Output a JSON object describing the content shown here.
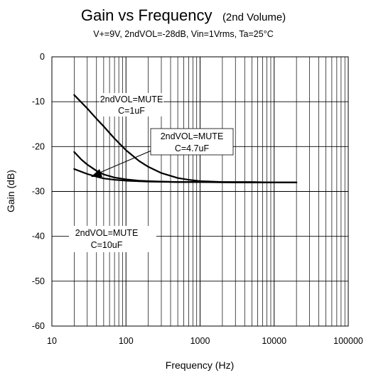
{
  "chart_data": {
    "type": "line",
    "title": "Gain vs Frequency",
    "title_suffix": "(2nd Volume)",
    "subtitle": "V+=9V, 2ndVOL=-28dB, Vin=1Vrms, Ta=25°C",
    "xlabel": "Frequency (Hz)",
    "ylabel": "Gain (dB)",
    "x_scale": "log",
    "xlim": [
      10,
      100000
    ],
    "ylim": [
      -60,
      0
    ],
    "x_ticks": [
      10,
      100,
      1000,
      10000,
      100000
    ],
    "x_tick_labels": [
      "10",
      "100",
      "1000",
      "10000",
      "100000"
    ],
    "y_ticks": [
      0,
      -10,
      -20,
      -30,
      -40,
      -50,
      -60
    ],
    "y_tick_labels": [
      "0",
      "-10",
      "-20",
      "-30",
      "-40",
      "-50",
      "-60"
    ],
    "grid": true,
    "line_color": "#000000",
    "series": [
      {
        "annotation_lines": [
          "2ndVOL=MUTE",
          "C=1uF"
        ],
        "x": [
          20,
          30,
          40,
          50,
          70,
          100,
          150,
          200,
          300,
          500,
          700,
          1000,
          2000,
          5000,
          10000,
          20000
        ],
        "y": [
          -8.5,
          -11.5,
          -13.8,
          -15.5,
          -18.2,
          -20.8,
          -23.2,
          -24.5,
          -25.9,
          -27.0,
          -27.4,
          -27.7,
          -27.9,
          -27.9,
          -28.0,
          -28.0
        ]
      },
      {
        "annotation_lines": [
          "2ndVOL=MUTE",
          "C=4.7uF"
        ],
        "x": [
          20,
          25,
          30,
          40,
          50,
          70,
          100,
          150,
          200,
          300,
          500,
          1000,
          5000,
          20000
        ],
        "y": [
          -21.2,
          -22.9,
          -24.0,
          -25.4,
          -26.2,
          -26.9,
          -27.3,
          -27.6,
          -27.7,
          -27.8,
          -27.9,
          -27.9,
          -28.0,
          -28.0
        ]
      },
      {
        "annotation_lines": [
          "2ndVOL=MUTE",
          "C=10uF"
        ],
        "x": [
          20,
          30,
          40,
          50,
          70,
          100,
          200,
          500,
          1000,
          5000,
          20000
        ],
        "y": [
          -25.0,
          -26.1,
          -26.7,
          -27.1,
          -27.4,
          -27.6,
          -27.8,
          -27.9,
          -27.9,
          -28.0,
          -28.0
        ]
      }
    ]
  }
}
